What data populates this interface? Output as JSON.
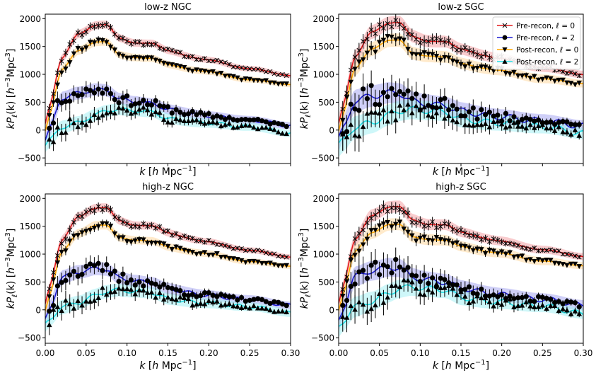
{
  "chart_data": {
    "type": "line",
    "x_tick_labels": [
      "0.00",
      "0.05",
      "0.10",
      "0.15",
      "0.20",
      "0.25",
      "0.30"
    ],
    "xlim": [
      0.0,
      0.3
    ],
    "ylim": [
      -600,
      2080
    ],
    "y_ticks": [
      -500,
      0,
      500,
      1000,
      1500,
      2000
    ],
    "y_tick_labels": [
      "−500",
      "0",
      "500",
      "1000",
      "1500",
      "2000"
    ],
    "xlabel_parts": [
      "k [",
      "h",
      " Mpc",
      "−1",
      "]"
    ],
    "ylabel_parts": [
      "kP",
      "ℓ",
      "(k) [",
      "h",
      "−3",
      "Mpc",
      "3",
      "]"
    ],
    "legend": [
      {
        "label": "Pre-recon, ℓ = 0",
        "color": "#e31a1c",
        "marker": "x"
      },
      {
        "label": "Pre-recon, ℓ = 2",
        "color": "#1a1ad0",
        "marker": "o"
      },
      {
        "label": "Post-recon, ℓ = 0",
        "color": "#ffa500",
        "marker": "v"
      },
      {
        "label": "Post-recon, ℓ = 2",
        "color": "#22e0e6",
        "marker": "^"
      }
    ],
    "panels": [
      {
        "title": "low-z NGC",
        "params": {
          "pre0": 1.0,
          "pre2": 1.0,
          "post0": 1.0,
          "post2": 1.0,
          "err": 1.0,
          "seed": 11
        }
      },
      {
        "title": "low-z SGC",
        "params": {
          "pre0": 1.02,
          "pre2": 0.92,
          "post0": 1.02,
          "post2": 1.0,
          "err": 1.8,
          "seed": 23
        }
      },
      {
        "title": "high-z NGC",
        "params": {
          "pre0": 0.97,
          "pre2": 1.02,
          "post0": 0.96,
          "post2": 0.95,
          "err": 1.1,
          "seed": 37
        }
      },
      {
        "title": "high-z SGC",
        "params": {
          "pre0": 0.98,
          "pre2": 1.05,
          "post0": 0.97,
          "post2": 1.1,
          "err": 1.6,
          "seed": 53
        }
      }
    ],
    "series_keys": [
      {
        "name": "Pre-recon, ℓ = 0",
        "key": "pre0",
        "color": "#e31a1c",
        "band": "#f4a3a6"
      },
      {
        "name": "Pre-recon, ℓ = 2",
        "key": "pre2",
        "color": "#1a1ad0",
        "band": "#a8a8f0"
      },
      {
        "name": "Post-recon, ℓ = 0",
        "key": "post0",
        "color": "#ffa500",
        "band": "#ffd8a0"
      },
      {
        "name": "Post-recon, ℓ = 2",
        "key": "post2",
        "color": "#22e0e6",
        "band": "#a6f1f4"
      }
    ],
    "model_anchor_points": {
      "k": [
        0.005,
        0.02,
        0.04,
        0.06,
        0.075,
        0.09,
        0.11,
        0.13,
        0.15,
        0.2,
        0.25,
        0.3
      ],
      "pre0": [
        400,
        1250,
        1750,
        1880,
        1870,
        1650,
        1580,
        1550,
        1420,
        1250,
        1100,
        980
      ],
      "pre2": [
        0,
        550,
        680,
        730,
        700,
        560,
        520,
        470,
        370,
        250,
        180,
        80
      ],
      "post0": [
        250,
        1050,
        1450,
        1580,
        1560,
        1350,
        1320,
        1280,
        1170,
        1040,
        900,
        820
      ],
      "post2": [
        -200,
        30,
        150,
        270,
        330,
        370,
        360,
        320,
        200,
        120,
        60,
        -60
      ]
    }
  }
}
